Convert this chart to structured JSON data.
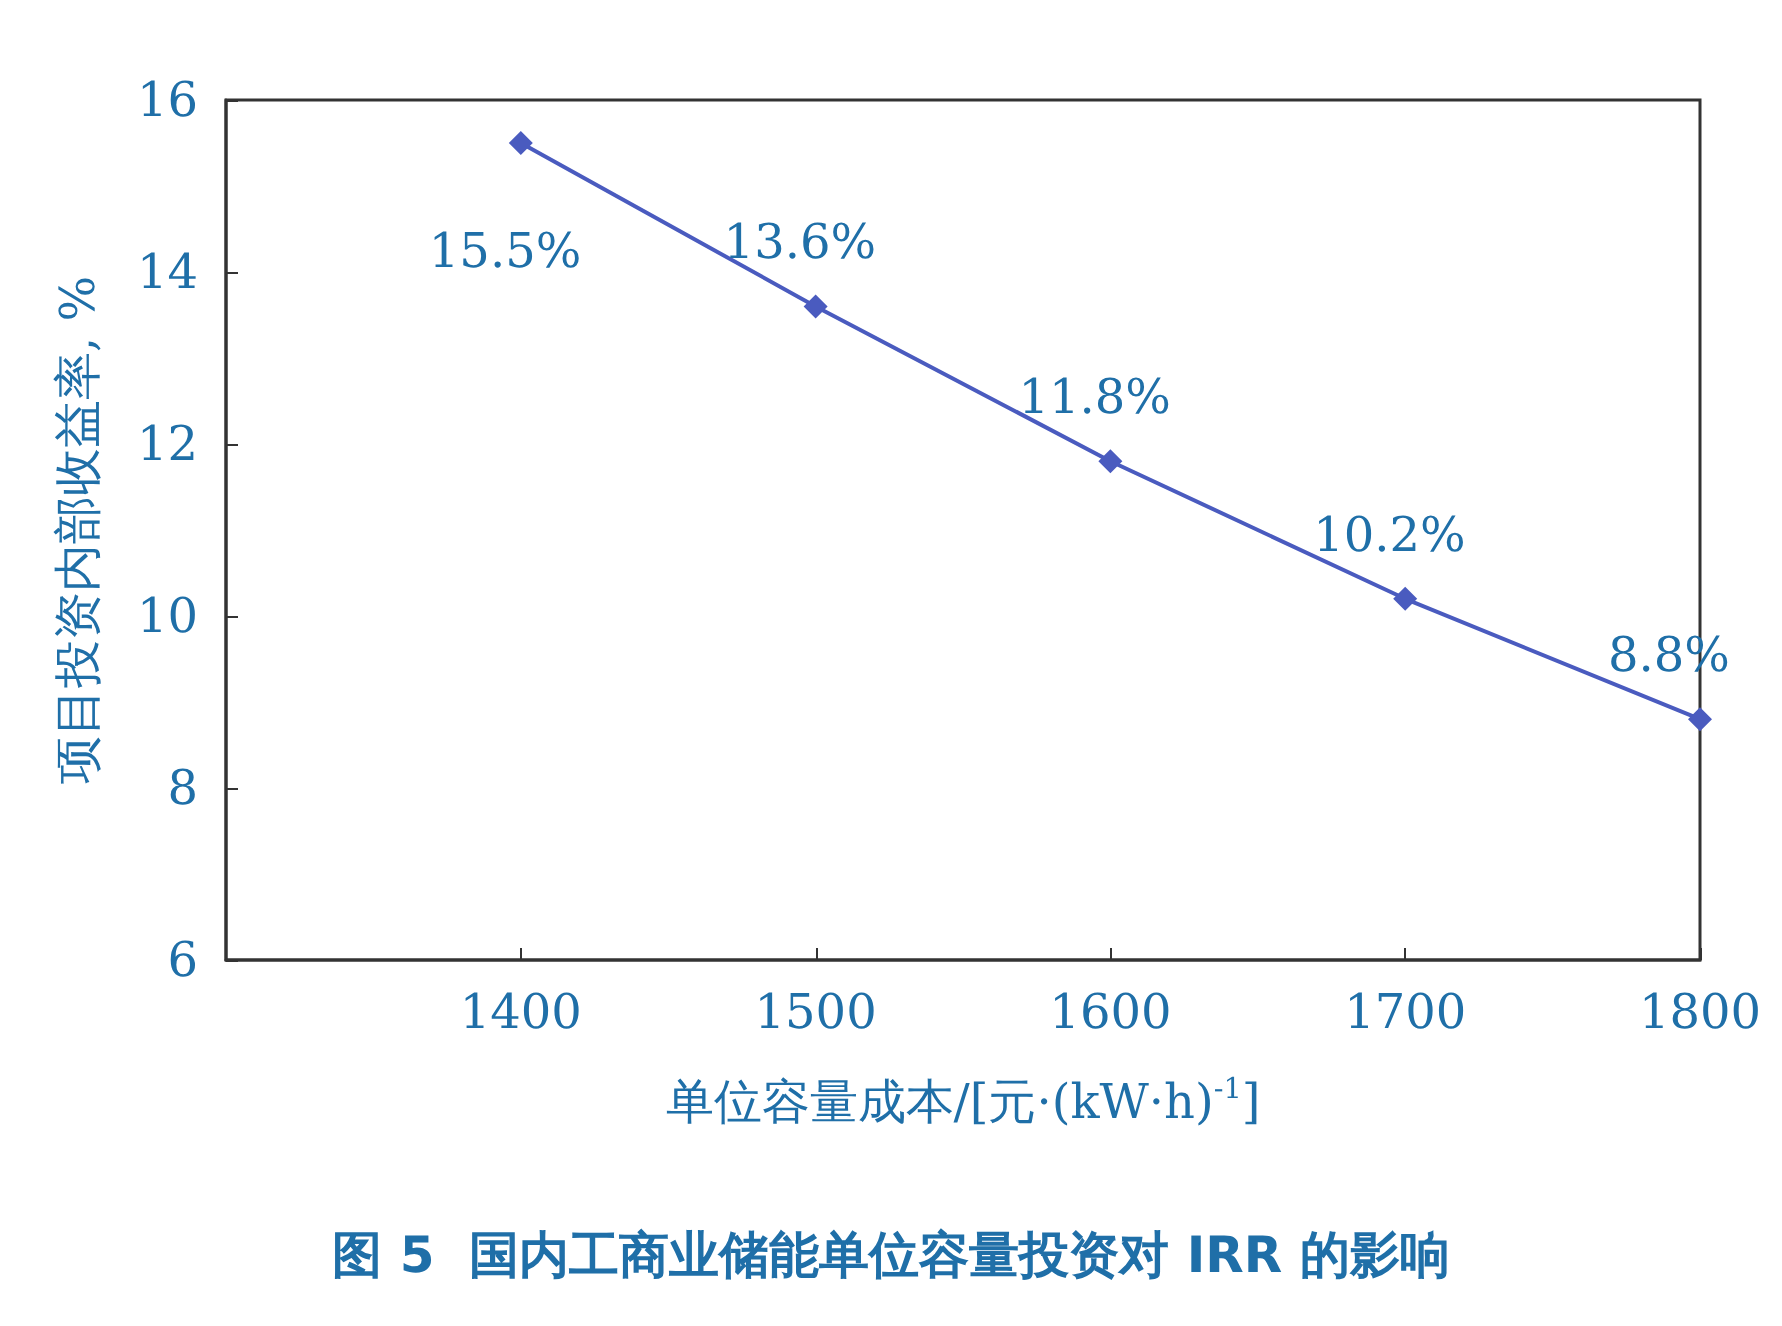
{
  "chart_data": {
    "type": "line",
    "title": "图 5  国内工商业储能单位容量投资对 IRR 的影响",
    "xlabel": "单位容量成本/[元·(kW·h)$^{-1}$]",
    "ylabel": "项目投资内部收益率, %",
    "x": [
      1400,
      1500,
      1600,
      1700,
      1800
    ],
    "series": [
      {
        "color": "#4a5bbf",
        "values": [
          15.5,
          13.6,
          11.8,
          10.2,
          8.8
        ],
        "value_labels": [
          "15.5%",
          "13.6%",
          "11.8%",
          "10.2%",
          "8.8%"
        ]
      }
    ],
    "xlim": [
      1300,
      1800
    ],
    "xticks": [
      1400,
      1500,
      1600,
      1700,
      1800
    ],
    "ylim": [
      6,
      16
    ],
    "yticks": [
      6,
      8,
      10,
      12,
      14,
      16
    ],
    "grid": false,
    "marker": "diamond",
    "line_style": "solid"
  }
}
